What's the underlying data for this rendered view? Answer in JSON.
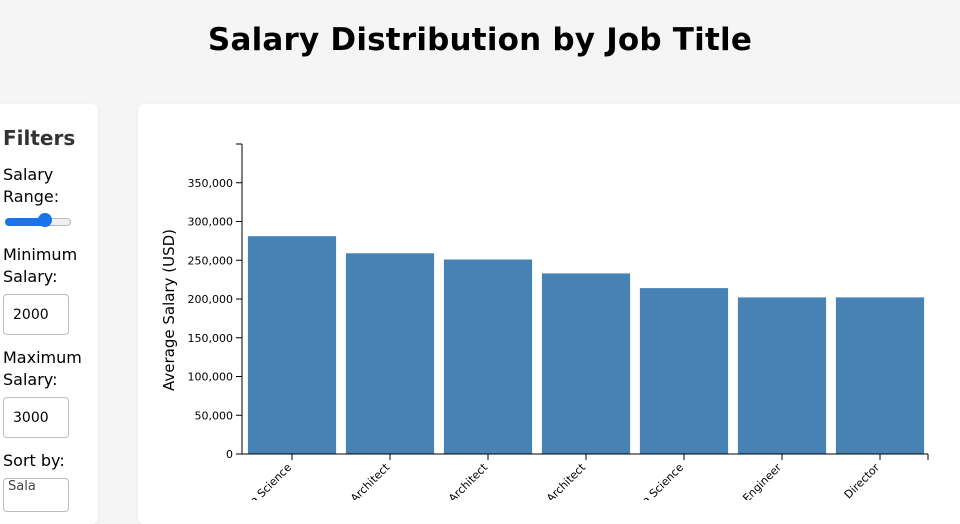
{
  "page": {
    "title": "Salary Distribution by Job Title"
  },
  "filters": {
    "title": "Filters",
    "salary_range_label": "Salary Range:",
    "salary_range_value": 0.66,
    "min_salary_label": "Minimum Salary:",
    "min_salary_value": "2000",
    "max_salary_label": "Maximum Salary:",
    "max_salary_value": "3000",
    "sort_label": "Sort by:",
    "sort_value": "Sala"
  },
  "colors": {
    "bar": "#4682b4",
    "axis": "#000000",
    "accent": "#1a73e8"
  },
  "chart_data": {
    "type": "bar",
    "categories": [
      "a Science",
      "Architect",
      "Architect",
      "Architect",
      "a Science",
      "Engineer",
      "Director"
    ],
    "values": [
      281000,
      259000,
      251000,
      233000,
      214000,
      202000,
      202000
    ],
    "ylabel": "Average Salary (USD)",
    "ylim": [
      0,
      400000
    ],
    "yticks": [
      0,
      50000,
      100000,
      150000,
      200000,
      250000,
      300000,
      350000
    ],
    "ytick_labels": [
      "0",
      "50,000",
      "100,000",
      "150,000",
      "200,000",
      "250,000",
      "300,000",
      "350,000"
    ],
    "grid": false
  }
}
